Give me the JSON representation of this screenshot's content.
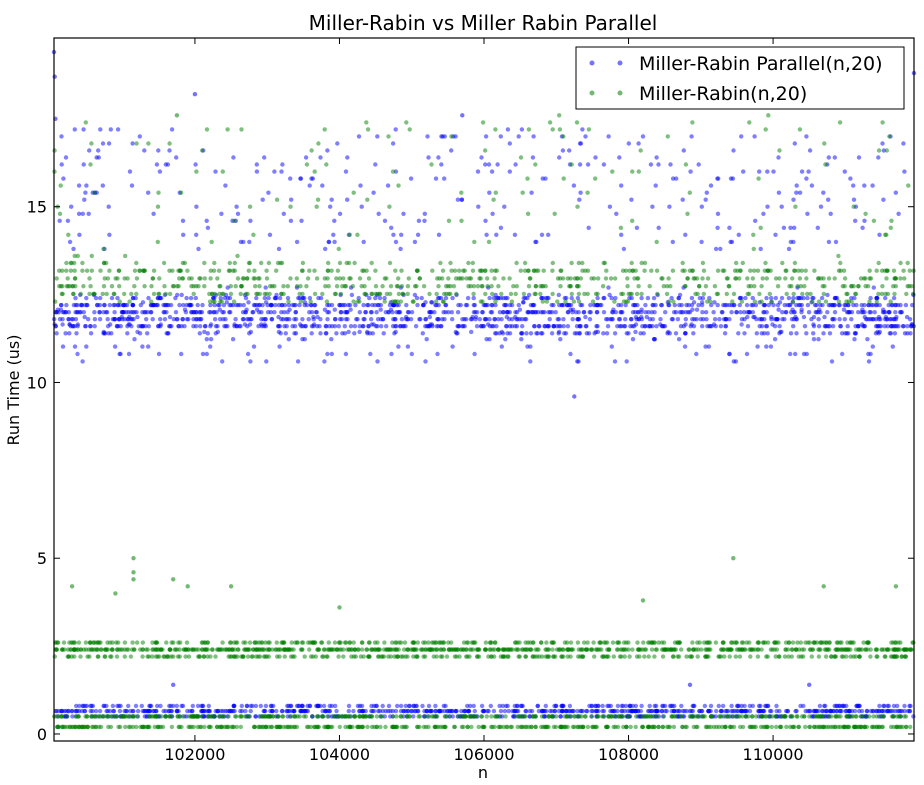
{
  "chart_data": {
    "type": "scatter",
    "title": "Miller-Rabin vs Miller Rabin Parallel",
    "xlabel": "n",
    "ylabel": "Run Time (us)",
    "xlim": [
      100050,
      111950
    ],
    "ylim": [
      -0.2,
      19.8
    ],
    "xticks": [
      102000,
      104000,
      106000,
      108000,
      110000
    ],
    "yticks": [
      0,
      5,
      10,
      15
    ],
    "grid": false,
    "legend_position": "top-right",
    "series": [
      {
        "name": "Miller-Rabin Parallel(n,20)",
        "color": "#0000ff",
        "bands": [
          {
            "y_min": 0.5,
            "y_max": 0.8,
            "share": 0.32
          },
          {
            "y_min": 11.4,
            "y_max": 12.4,
            "share": 0.46
          },
          {
            "y_min": 10.6,
            "y_max": 12.7,
            "share": 0.1
          },
          {
            "y_min": 13.8,
            "y_max": 17.2,
            "share": 0.12
          }
        ],
        "sample_points": [
          {
            "x": 100050,
            "y": 19.4
          },
          {
            "x": 100060,
            "y": 18.7
          },
          {
            "x": 100070,
            "y": 17.5
          },
          {
            "x": 102000,
            "y": 18.2
          },
          {
            "x": 105700,
            "y": 17.6
          },
          {
            "x": 107250,
            "y": 9.6
          },
          {
            "x": 108850,
            "y": 1.4
          },
          {
            "x": 101700,
            "y": 1.4
          },
          {
            "x": 110500,
            "y": 1.4
          },
          {
            "x": 111950,
            "y": 18.8
          }
        ]
      },
      {
        "name": "Miller-Rabin(n,20)",
        "color": "#008000",
        "bands": [
          {
            "y_min": 0.2,
            "y_max": 0.5,
            "share": 0.3
          },
          {
            "y_min": 2.2,
            "y_max": 2.6,
            "share": 0.4
          },
          {
            "y_min": 12.3,
            "y_max": 13.4,
            "share": 0.25
          },
          {
            "y_min": 13.4,
            "y_max": 17.6,
            "share": 0.05
          }
        ],
        "sample_points": [
          {
            "x": 100300,
            "y": 4.2
          },
          {
            "x": 100900,
            "y": 4.0
          },
          {
            "x": 101150,
            "y": 5.0
          },
          {
            "x": 101150,
            "y": 4.6
          },
          {
            "x": 101150,
            "y": 4.4
          },
          {
            "x": 101700,
            "y": 4.4
          },
          {
            "x": 101900,
            "y": 4.2
          },
          {
            "x": 102500,
            "y": 4.2
          },
          {
            "x": 104000,
            "y": 3.6
          },
          {
            "x": 108200,
            "y": 3.8
          },
          {
            "x": 109450,
            "y": 5.0
          },
          {
            "x": 110700,
            "y": 4.2
          },
          {
            "x": 111700,
            "y": 4.2
          },
          {
            "x": 101750,
            "y": 17.6
          }
        ]
      }
    ]
  }
}
